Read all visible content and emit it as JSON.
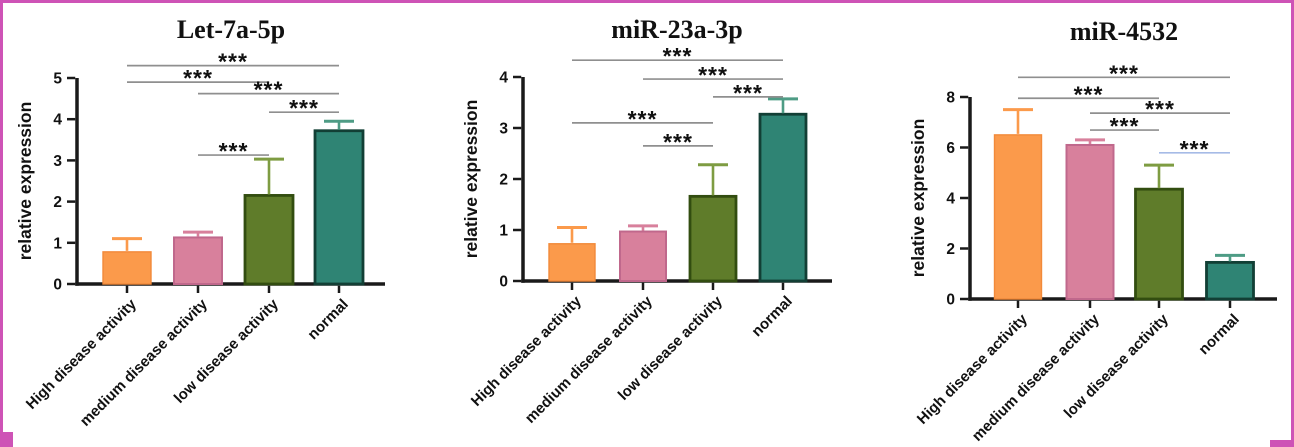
{
  "figure": {
    "frame_color": "#CE53B6",
    "background": "#FFFFFF",
    "significance_label": "***"
  },
  "series_styles": [
    {
      "name": "High disease activity",
      "fill": "#FB9A4B",
      "border": "#F28A3A",
      "border_width": 1.4,
      "error_color": "#FB9A4B"
    },
    {
      "name": "medium disease activity",
      "fill": "#D8809C",
      "border": "#C0688C",
      "border_width": 2.0,
      "error_color": "#D8809C"
    },
    {
      "name": "low disease activity",
      "fill": "#5F7C2A",
      "border": "#324D10",
      "border_width": 2.8,
      "error_color": "#7E9C42"
    },
    {
      "name": "normal",
      "fill": "#2F8474",
      "border": "#123F35",
      "border_width": 2.8,
      "error_color": "#4E9C85"
    }
  ],
  "chart_data": [
    {
      "type": "bar",
      "title": "Let-7a-5p",
      "xlabel": "",
      "ylabel": "relative expression",
      "categories": [
        "High disease activity",
        "medium disease activity",
        "low disease activity",
        "normal"
      ],
      "values": [
        0.78,
        1.13,
        2.15,
        3.72
      ],
      "errors_up": [
        0.32,
        0.13,
        0.88,
        0.23
      ],
      "ylim": [
        0,
        5
      ],
      "yticks": [
        0,
        1,
        2,
        3,
        4,
        5
      ],
      "grid": false,
      "legend": "none",
      "significance": [
        {
          "between": [
            0,
            3
          ],
          "label": "***",
          "y": 5.3,
          "color": "#8F8F8F"
        },
        {
          "between": [
            0,
            2
          ],
          "label": "***",
          "y": 4.9,
          "color": "#8F8F8F"
        },
        {
          "between": [
            1,
            3
          ],
          "label": "***",
          "y": 4.62,
          "color": "#8F8F8F"
        },
        {
          "between": [
            2,
            3
          ],
          "label": "***",
          "y": 4.17,
          "color": "#8F8F8F"
        },
        {
          "between": [
            1,
            2
          ],
          "label": "***",
          "y": 3.13,
          "color": "#8F8F8F"
        }
      ]
    },
    {
      "type": "bar",
      "title": "miR-23a-3p",
      "xlabel": "",
      "ylabel": "relative expression",
      "categories": [
        "High disease activity",
        "medium disease activity",
        "low disease activity",
        "normal"
      ],
      "values": [
        0.73,
        0.97,
        1.66,
        3.27
      ],
      "errors_up": [
        0.32,
        0.11,
        0.62,
        0.3
      ],
      "ylim": [
        0,
        4
      ],
      "yticks": [
        0,
        1,
        2,
        3,
        4
      ],
      "grid": false,
      "legend": "none",
      "significance": [
        {
          "between": [
            0,
            3
          ],
          "label": "***",
          "y": 4.33,
          "color": "#8F8F8F"
        },
        {
          "between": [
            1,
            3
          ],
          "label": "***",
          "y": 3.96,
          "color": "#8F8F8F"
        },
        {
          "between": [
            2,
            3
          ],
          "label": "***",
          "y": 3.61,
          "color": "#8F8F8F"
        },
        {
          "between": [
            0,
            2
          ],
          "label": "***",
          "y": 3.1,
          "color": "#8F8F8F"
        },
        {
          "between": [
            1,
            2
          ],
          "label": "***",
          "y": 2.65,
          "color": "#8F8F8F"
        }
      ]
    },
    {
      "type": "bar",
      "title": "miR-4532",
      "xlabel": "",
      "ylabel": "relative expression",
      "categories": [
        "High disease activity",
        "medium disease activity",
        "low disease activity",
        "normal"
      ],
      "values": [
        6.5,
        6.1,
        4.35,
        1.45
      ],
      "errors_up": [
        1.0,
        0.2,
        0.95,
        0.28
      ],
      "ylim": [
        0,
        8
      ],
      "yticks": [
        0,
        2,
        4,
        6,
        8
      ],
      "grid": false,
      "legend": "none",
      "significance": [
        {
          "between": [
            0,
            3
          ],
          "label": "***",
          "y": 8.78,
          "color": "#8F8F8F"
        },
        {
          "between": [
            0,
            2
          ],
          "label": "***",
          "y": 7.95,
          "color": "#8F8F8F"
        },
        {
          "between": [
            1,
            3
          ],
          "label": "***",
          "y": 7.36,
          "color": "#8F8F8F"
        },
        {
          "between": [
            1,
            2
          ],
          "label": "***",
          "y": 6.69,
          "color": "#8F8F8F"
        },
        {
          "between": [
            2,
            3
          ],
          "label": "***",
          "y": 5.79,
          "color": "#A6BBE6"
        }
      ]
    }
  ]
}
